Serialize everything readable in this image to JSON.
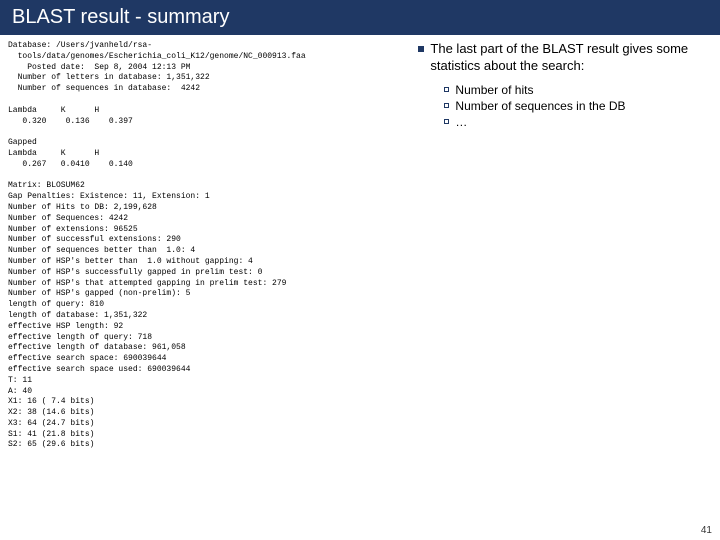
{
  "title": "BLAST result - summary",
  "blast_text": "Database: /Users/jvanheld/rsa-\n  tools/data/genomes/Escherichia_coli_K12/genome/NC_000913.faa\n    Posted date:  Sep 8, 2004 12:13 PM\n  Number of letters in database: 1,351,322\n  Number of sequences in database:  4242\n\nLambda     K      H\n   0.320    0.136    0.397\n\nGapped\nLambda     K      H\n   0.267   0.0410    0.140\n\nMatrix: BLOSUM62\nGap Penalties: Existence: 11, Extension: 1\nNumber of Hits to DB: 2,199,628\nNumber of Sequences: 4242\nNumber of extensions: 96525\nNumber of successful extensions: 290\nNumber of sequences better than  1.0: 4\nNumber of HSP's better than  1.0 without gapping: 4\nNumber of HSP's successfully gapped in prelim test: 0\nNumber of HSP's that attempted gapping in prelim test: 279\nNumber of HSP's gapped (non-prelim): 5\nlength of query: 810\nlength of database: 1,351,322\neffective HSP length: 92\neffective length of query: 718\neffective length of database: 961,058\neffective search space: 690039644\neffective search space used: 690039644\nT: 11\nA: 40\nX1: 16 ( 7.4 bits)\nX2: 38 (14.6 bits)\nX3: 64 (24.7 bits)\nS1: 41 (21.8 bits)\nS2: 65 (29.6 bits)",
  "main_bullet": "The last part of the BLAST result gives some statistics about the search:",
  "subs": {
    "a": "Number of hits",
    "b": "Number of sequences in the DB",
    "c": "…"
  },
  "pagenum": "41"
}
